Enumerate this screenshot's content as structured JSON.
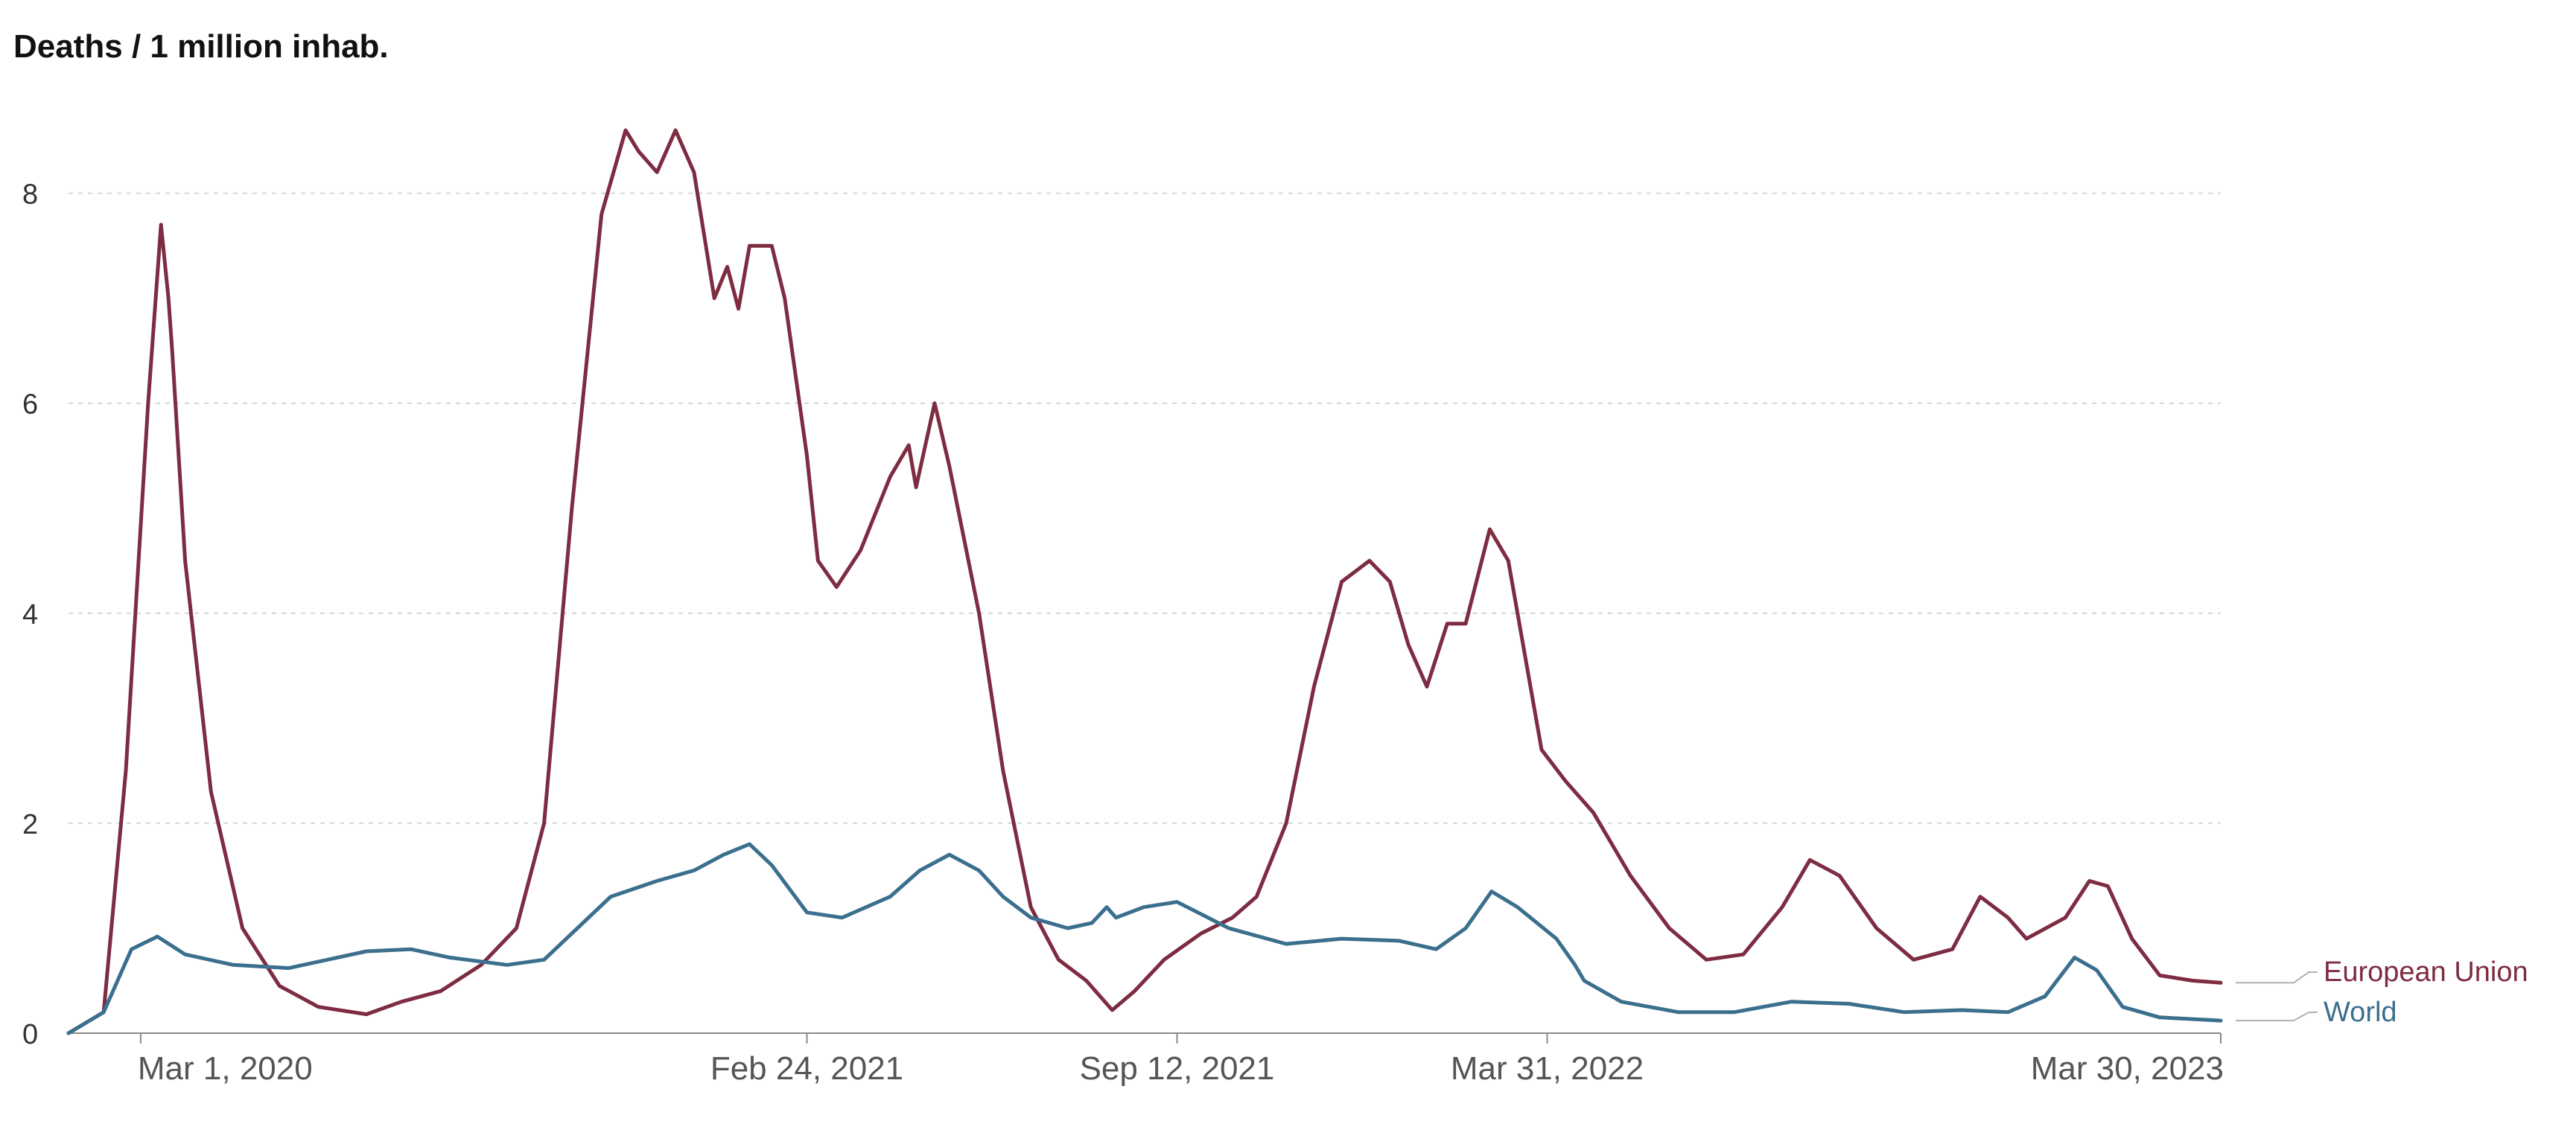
{
  "chart_data": {
    "type": "line",
    "title": "Deaths / 1 million inhab.",
    "xlabel": "",
    "ylabel": "",
    "ylim": [
      0,
      8.6
    ],
    "grid": true,
    "legend": "right-end labels",
    "y_ticks": [
      0,
      2,
      4,
      6,
      8
    ],
    "x_ticks": [
      "Mar 1, 2020",
      "Feb 24, 2021",
      "Sep 12, 2021",
      "Mar 31, 2022",
      "Mar 30, 2023"
    ],
    "x_range": [
      "2020-01-22",
      "2023-03-30"
    ],
    "series": [
      {
        "name": "European Union",
        "color": "#7d2c41",
        "points": [
          [
            "2020-01-22",
            0
          ],
          [
            "2020-02-10",
            0.2
          ],
          [
            "2020-02-22",
            2.5
          ],
          [
            "2020-03-05",
            6.0
          ],
          [
            "2020-03-12",
            7.7
          ],
          [
            "2020-03-16",
            7.0
          ],
          [
            "2020-03-18",
            6.5
          ],
          [
            "2020-03-25",
            4.5
          ],
          [
            "2020-04-08",
            2.3
          ],
          [
            "2020-04-25",
            1.0
          ],
          [
            "2020-05-15",
            0.45
          ],
          [
            "2020-06-05",
            0.25
          ],
          [
            "2020-07-01",
            0.18
          ],
          [
            "2020-07-20",
            0.3
          ],
          [
            "2020-08-10",
            0.4
          ],
          [
            "2020-09-01",
            0.65
          ],
          [
            "2020-09-20",
            1.0
          ],
          [
            "2020-10-05",
            2.0
          ],
          [
            "2020-10-20",
            5.0
          ],
          [
            "2020-11-05",
            7.8
          ],
          [
            "2020-11-18",
            8.6
          ],
          [
            "2020-11-25",
            8.4
          ],
          [
            "2020-12-05",
            8.2
          ],
          [
            "2020-12-15",
            8.6
          ],
          [
            "2020-12-25",
            8.2
          ],
          [
            "2021-01-05",
            7.0
          ],
          [
            "2021-01-12",
            7.3
          ],
          [
            "2021-01-18",
            6.9
          ],
          [
            "2021-01-24",
            7.5
          ],
          [
            "2021-02-05",
            7.5
          ],
          [
            "2021-02-12",
            7.0
          ],
          [
            "2021-02-24",
            5.5
          ],
          [
            "2021-03-02",
            4.5
          ],
          [
            "2021-03-12",
            4.25
          ],
          [
            "2021-03-25",
            4.6
          ],
          [
            "2021-04-10",
            5.3
          ],
          [
            "2021-04-20",
            5.6
          ],
          [
            "2021-04-24",
            5.2
          ],
          [
            "2021-05-04",
            6.0
          ],
          [
            "2021-05-12",
            5.4
          ],
          [
            "2021-05-28",
            4.0
          ],
          [
            "2021-06-10",
            2.5
          ],
          [
            "2021-06-25",
            1.2
          ],
          [
            "2021-07-10",
            0.7
          ],
          [
            "2021-07-25",
            0.5
          ],
          [
            "2021-08-08",
            0.22
          ],
          [
            "2021-08-20",
            0.4
          ],
          [
            "2021-09-05",
            0.7
          ],
          [
            "2021-09-25",
            0.95
          ],
          [
            "2021-10-12",
            1.1
          ],
          [
            "2021-10-25",
            1.3
          ],
          [
            "2021-11-10",
            2.0
          ],
          [
            "2021-11-25",
            3.3
          ],
          [
            "2021-12-10",
            4.3
          ],
          [
            "2021-12-25",
            4.5
          ],
          [
            "2022-01-05",
            4.3
          ],
          [
            "2022-01-15",
            3.7
          ],
          [
            "2022-01-25",
            3.3
          ],
          [
            "2022-02-05",
            3.9
          ],
          [
            "2022-02-15",
            3.9
          ],
          [
            "2022-02-28",
            4.8
          ],
          [
            "2022-03-10",
            4.5
          ],
          [
            "2022-03-28",
            2.7
          ],
          [
            "2022-04-10",
            2.4
          ],
          [
            "2022-04-25",
            2.1
          ],
          [
            "2022-05-15",
            1.5
          ],
          [
            "2022-06-05",
            1.0
          ],
          [
            "2022-06-25",
            0.7
          ],
          [
            "2022-07-15",
            0.75
          ],
          [
            "2022-08-05",
            1.2
          ],
          [
            "2022-08-20",
            1.65
          ],
          [
            "2022-09-05",
            1.5
          ],
          [
            "2022-09-25",
            1.0
          ],
          [
            "2022-10-15",
            0.7
          ],
          [
            "2022-11-05",
            0.8
          ],
          [
            "2022-11-20",
            1.3
          ],
          [
            "2022-12-05",
            1.1
          ],
          [
            "2022-12-15",
            0.9
          ],
          [
            "2023-01-05",
            1.1
          ],
          [
            "2023-01-18",
            1.45
          ],
          [
            "2023-01-28",
            1.4
          ],
          [
            "2023-02-10",
            0.9
          ],
          [
            "2023-02-25",
            0.55
          ],
          [
            "2023-03-15",
            0.5
          ],
          [
            "2023-03-30",
            0.48
          ]
        ]
      },
      {
        "name": "World",
        "color": "#3b6f8e",
        "points": [
          [
            "2020-01-22",
            0
          ],
          [
            "2020-02-10",
            0.2
          ],
          [
            "2020-02-25",
            0.8
          ],
          [
            "2020-03-10",
            0.92
          ],
          [
            "2020-03-25",
            0.75
          ],
          [
            "2020-04-20",
            0.65
          ],
          [
            "2020-05-20",
            0.62
          ],
          [
            "2020-06-10",
            0.7
          ],
          [
            "2020-07-01",
            0.78
          ],
          [
            "2020-07-25",
            0.8
          ],
          [
            "2020-08-15",
            0.72
          ],
          [
            "2020-09-15",
            0.65
          ],
          [
            "2020-10-05",
            0.7
          ],
          [
            "2020-10-20",
            0.95
          ],
          [
            "2020-11-10",
            1.3
          ],
          [
            "2020-12-05",
            1.45
          ],
          [
            "2020-12-25",
            1.55
          ],
          [
            "2021-01-10",
            1.7
          ],
          [
            "2021-01-24",
            1.8
          ],
          [
            "2021-02-05",
            1.6
          ],
          [
            "2021-02-24",
            1.15
          ],
          [
            "2021-03-15",
            1.1
          ],
          [
            "2021-04-10",
            1.3
          ],
          [
            "2021-04-26",
            1.55
          ],
          [
            "2021-05-12",
            1.7
          ],
          [
            "2021-05-28",
            1.55
          ],
          [
            "2021-06-10",
            1.3
          ],
          [
            "2021-06-25",
            1.1
          ],
          [
            "2021-07-15",
            1.0
          ],
          [
            "2021-07-28",
            1.05
          ],
          [
            "2021-08-05",
            1.2
          ],
          [
            "2021-08-10",
            1.1
          ],
          [
            "2021-08-25",
            1.2
          ],
          [
            "2021-09-12",
            1.25
          ],
          [
            "2021-10-10",
            1.0
          ],
          [
            "2021-11-10",
            0.85
          ],
          [
            "2021-12-10",
            0.9
          ],
          [
            "2022-01-10",
            0.88
          ],
          [
            "2022-01-30",
            0.8
          ],
          [
            "2022-02-15",
            1.0
          ],
          [
            "2022-03-01",
            1.35
          ],
          [
            "2022-03-15",
            1.2
          ],
          [
            "2022-04-05",
            0.9
          ],
          [
            "2022-04-15",
            0.65
          ],
          [
            "2022-04-20",
            0.5
          ],
          [
            "2022-05-10",
            0.3
          ],
          [
            "2022-06-10",
            0.2
          ],
          [
            "2022-07-10",
            0.2
          ],
          [
            "2022-08-10",
            0.3
          ],
          [
            "2022-09-10",
            0.28
          ],
          [
            "2022-10-10",
            0.2
          ],
          [
            "2022-11-10",
            0.22
          ],
          [
            "2022-12-05",
            0.2
          ],
          [
            "2022-12-25",
            0.35
          ],
          [
            "2023-01-10",
            0.72
          ],
          [
            "2023-01-22",
            0.6
          ],
          [
            "2023-02-05",
            0.25
          ],
          [
            "2023-02-25",
            0.15
          ],
          [
            "2023-03-30",
            0.12
          ]
        ]
      }
    ]
  }
}
